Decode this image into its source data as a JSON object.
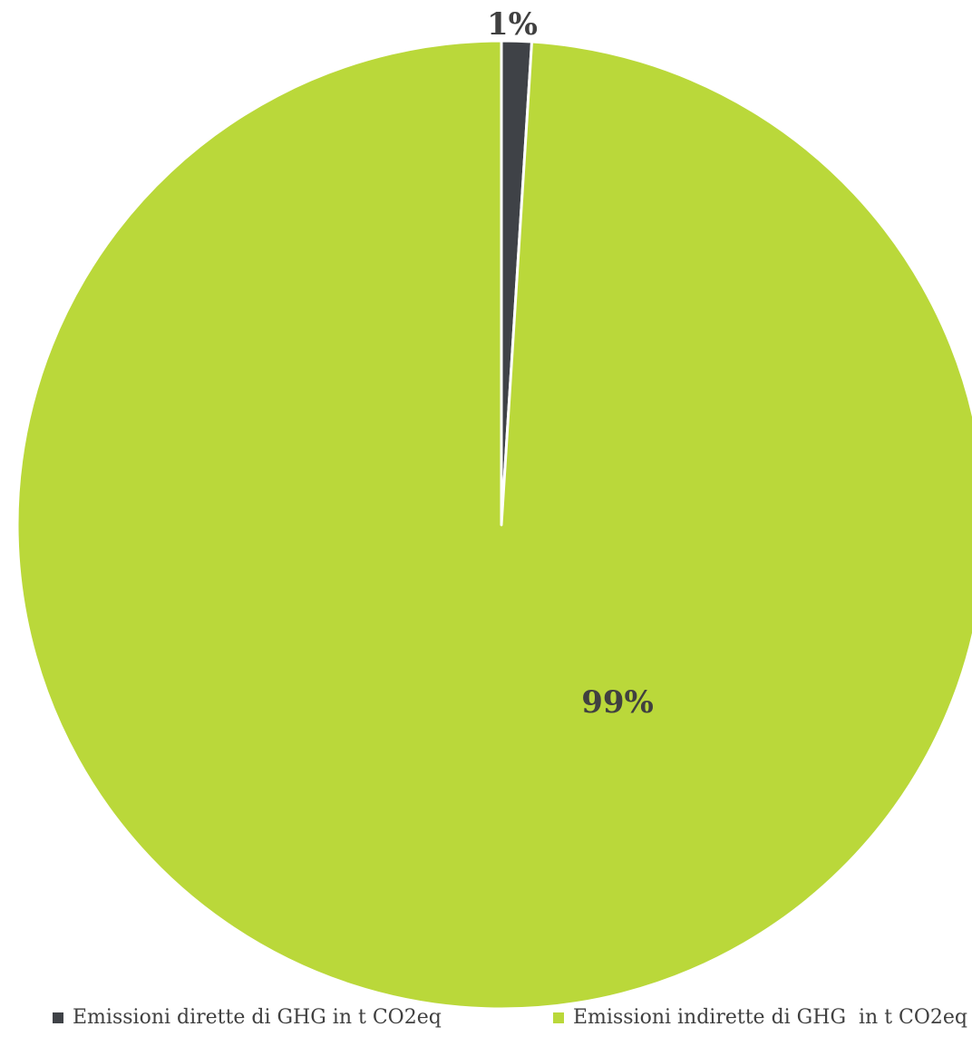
{
  "chart_data": {
    "type": "pie",
    "title": "",
    "categories": [
      "Emissioni dirette di GHG in t CO2eq",
      "Emissioni indirette di GHG  in t CO2eq"
    ],
    "values": [
      1,
      99
    ],
    "data_labels": [
      "1%",
      "99%"
    ],
    "colors": [
      "#3f4247",
      "#bad83a"
    ],
    "start_angle": "12 o'clock",
    "direction": "clockwise",
    "legend_position": "bottom"
  }
}
